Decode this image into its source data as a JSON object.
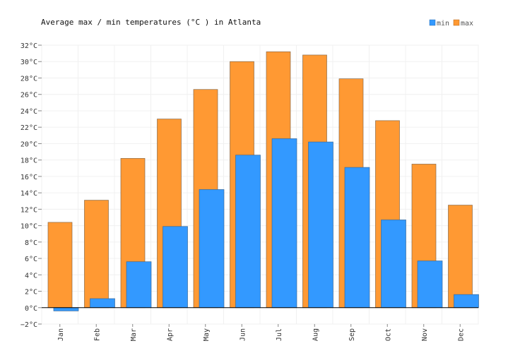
{
  "chart_data": {
    "type": "bar",
    "title": "Average max / min temperatures (°C ) in Atlanta",
    "xlabel": "",
    "ylabel": "",
    "categories": [
      "Jan",
      "Feb",
      "Mar",
      "Apr",
      "May",
      "Jun",
      "Jul",
      "Aug",
      "Sep",
      "Oct",
      "Nov",
      "Dec"
    ],
    "series": [
      {
        "name": "max",
        "color": "#ff9933",
        "values": [
          10.4,
          13.1,
          18.2,
          23.0,
          26.6,
          30.0,
          31.2,
          30.8,
          27.9,
          22.8,
          17.5,
          12.5
        ]
      },
      {
        "name": "min",
        "color": "#3399ff",
        "values": [
          -0.4,
          1.1,
          5.6,
          9.9,
          14.4,
          18.6,
          20.6,
          20.2,
          17.1,
          10.7,
          5.7,
          1.6
        ]
      }
    ],
    "legend": [
      {
        "label": "min",
        "color": "#3399ff"
      },
      {
        "label": "max",
        "color": "#ff9933"
      }
    ],
    "legend_position": "top-right",
    "ylim": [
      -2,
      32
    ],
    "yticks": [
      "−2°C",
      "0°C",
      "2°C",
      "4°C",
      "6°C",
      "8°C",
      "10°C",
      "12°C",
      "14°C",
      "16°C",
      "18°C",
      "20°C",
      "22°C",
      "24°C",
      "26°C",
      "28°C",
      "30°C",
      "32°C"
    ],
    "ytick_values": [
      -2,
      0,
      2,
      4,
      6,
      8,
      10,
      12,
      14,
      16,
      18,
      20,
      22,
      24,
      26,
      28,
      30,
      32
    ],
    "grid": true
  }
}
